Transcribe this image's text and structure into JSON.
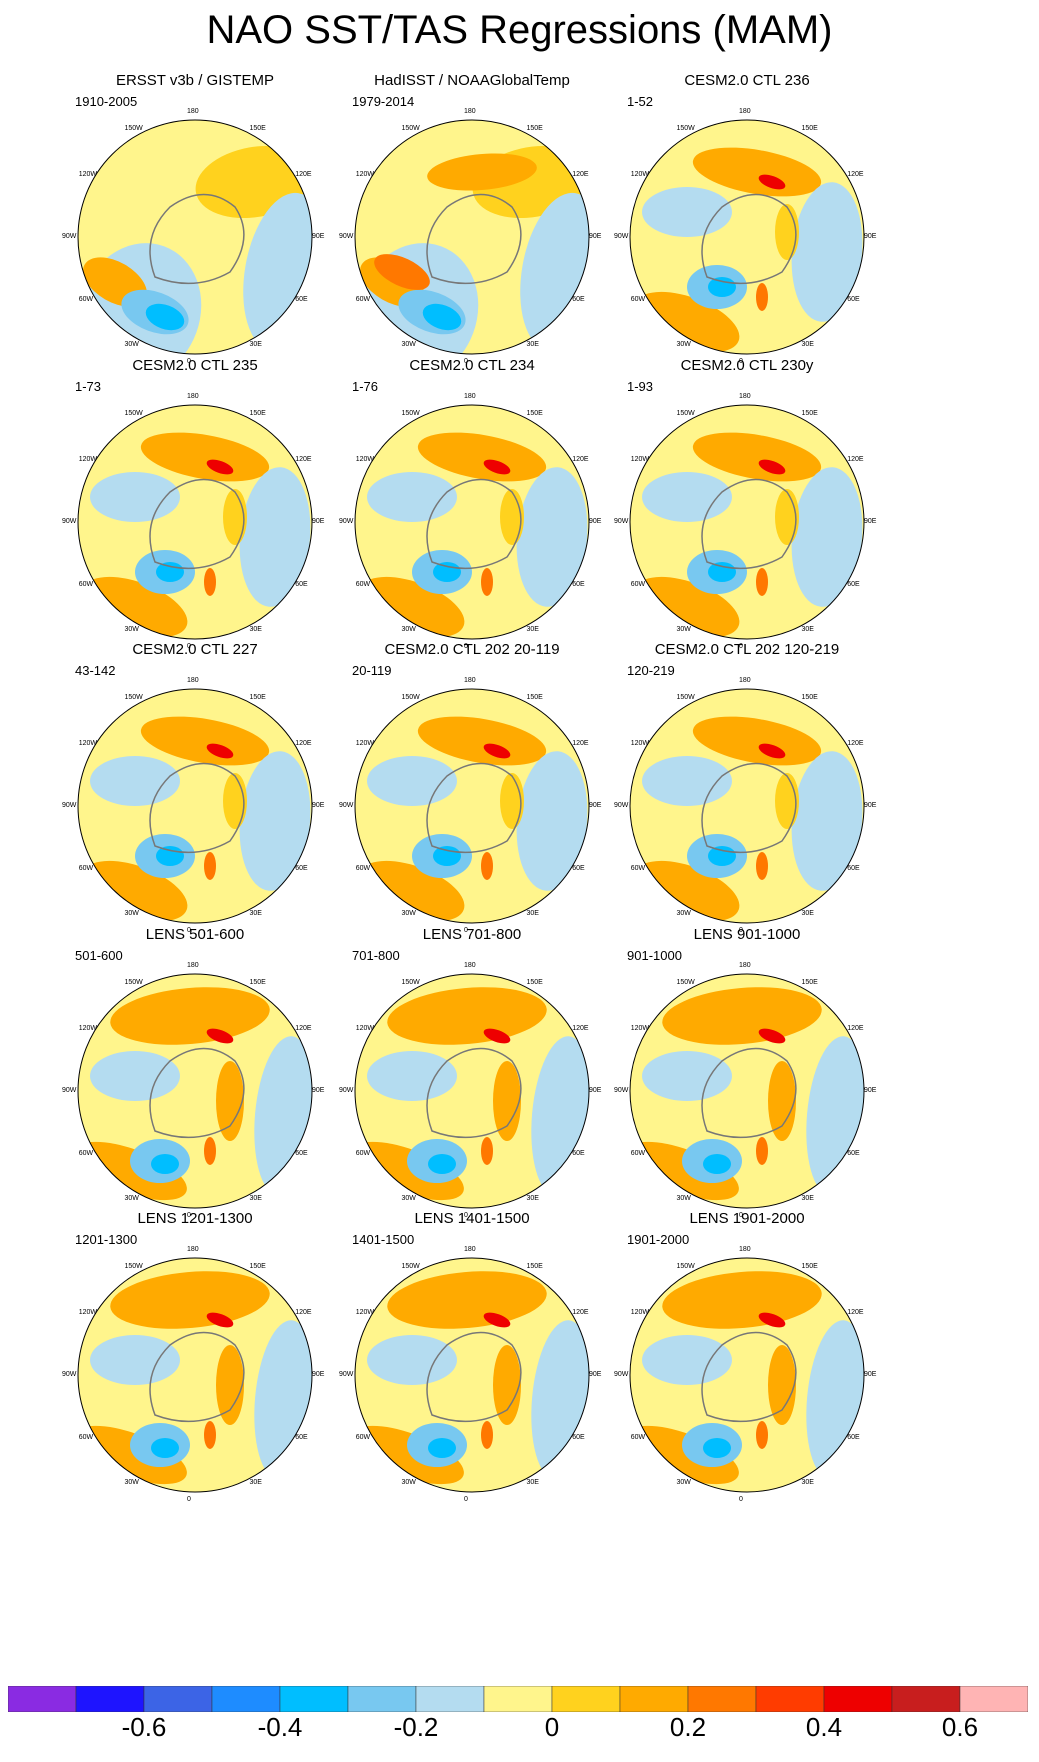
{
  "title": "NAO SST/TAS Regressions (MAM)",
  "panels": [
    {
      "title": "ERSST v3b / GISTEMP",
      "years": "1910-2005",
      "pattern": "obs1"
    },
    {
      "title": "HadISST / NOAAGlobalTemp",
      "years": "1979-2014",
      "pattern": "obs2"
    },
    {
      "title": "CESM2.0 CTL 236",
      "years": "1-52",
      "pattern": "model"
    },
    {
      "title": "CESM2.0 CTL 235",
      "years": "1-73",
      "pattern": "model"
    },
    {
      "title": "CESM2.0 CTL 234",
      "years": "1-76",
      "pattern": "model"
    },
    {
      "title": "CESM2.0 CTL 230y",
      "years": "1-93",
      "pattern": "model"
    },
    {
      "title": "CESM2.0 CTL 227",
      "years": "43-142",
      "pattern": "model"
    },
    {
      "title": "CESM2.0 CTL 202 20-119",
      "years": "20-119",
      "pattern": "model"
    },
    {
      "title": "CESM2.0 CTL 202 120-219",
      "years": "120-219",
      "pattern": "model"
    },
    {
      "title": "LENS 501-600",
      "years": "501-600",
      "pattern": "lens"
    },
    {
      "title": "LENS 701-800",
      "years": "701-800",
      "pattern": "lens"
    },
    {
      "title": "LENS 901-1000",
      "years": "901-1000",
      "pattern": "lens"
    },
    {
      "title": "LENS 1201-1300",
      "years": "1201-1300",
      "pattern": "lens"
    },
    {
      "title": "LENS 1401-1500",
      "years": "1401-1500",
      "pattern": "lens"
    },
    {
      "title": "LENS 1901-2000",
      "years": "1901-2000",
      "pattern": "lens"
    }
  ],
  "longitude_labels": [
    "180",
    "150E",
    "120E",
    "90E",
    "60E",
    "30E",
    "0",
    "30W",
    "60W",
    "90W",
    "120W",
    "150W"
  ],
  "colorbar": {
    "colors": [
      "#8a2be2",
      "#1e14ff",
      "#3c64e6",
      "#1e8cff",
      "#00beff",
      "#78c8f0",
      "#b4dcf0",
      "#fff58c",
      "#ffd21e",
      "#ffaa00",
      "#ff7800",
      "#ff3c00",
      "#ee0000",
      "#c81e1e",
      "#ffb4b4"
    ],
    "tick_labels": [
      "-0.6",
      "-0.4",
      "-0.2",
      "0",
      "0.2",
      "0.4",
      "0.6"
    ]
  },
  "chart_data": {
    "type": "heatmap",
    "title": "NAO SST/TAS Regressions (MAM)",
    "projection": "north polar stereographic",
    "levels": [
      -0.7,
      -0.6,
      -0.5,
      -0.4,
      -0.3,
      -0.2,
      -0.1,
      0,
      0.1,
      0.2,
      0.3,
      0.4,
      0.5,
      0.6,
      0.7
    ],
    "colorbar_ticks": [
      -0.6,
      -0.4,
      -0.2,
      0,
      0.2,
      0.4,
      0.6
    ]
  }
}
